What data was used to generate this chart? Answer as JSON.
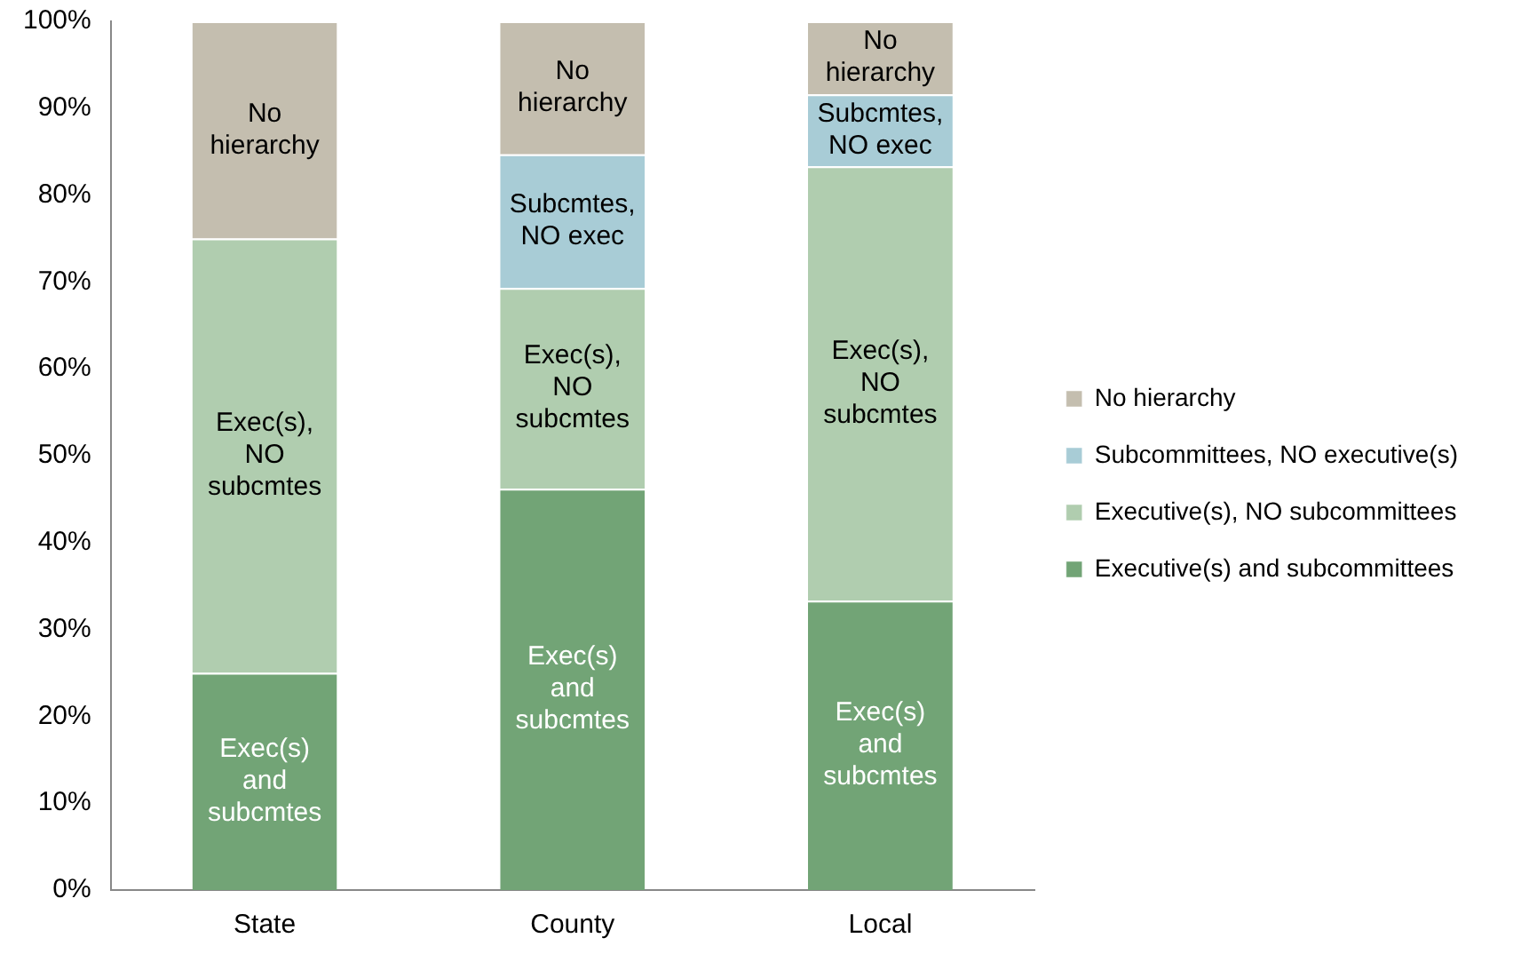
{
  "chart_data": {
    "type": "bar",
    "stacked": true,
    "categories": [
      "State",
      "County",
      "Local"
    ],
    "series": [
      {
        "name": "Executive(s) and subcommittees",
        "color": "#72a476",
        "values": [
          25,
          46.2,
          33.3
        ],
        "value_labels": [
          "Exec(s) and subcmtes",
          "Exec(s) and subcmtes",
          "Exec(s) and subcmtes"
        ]
      },
      {
        "name": "Executive(s), NO subcommittees",
        "color": "#b0cdaf",
        "values": [
          50,
          23.1,
          50
        ],
        "value_labels": [
          "Exec(s), NO subcmtes",
          "Exec(s), NO subcmtes",
          "Exec(s), NO subcmtes"
        ]
      },
      {
        "name": "Subcommittees, NO executive(s)",
        "color": "#a8ccd6",
        "values": [
          0,
          15.4,
          8.3
        ],
        "value_labels": [
          null,
          "Subcmtes, NO exec",
          "Subcmtes, NO exec"
        ]
      },
      {
        "name": "No hierarchy",
        "color": "#c4beaf",
        "values": [
          25,
          15.3,
          8.4
        ],
        "value_labels": [
          "No hierarchy",
          "No hierarchy",
          "No hierarchy"
        ]
      }
    ],
    "ylim": [
      0,
      100
    ],
    "yticks": [
      {
        "value": 0,
        "label": "0%"
      },
      {
        "value": 10,
        "label": "10%"
      },
      {
        "value": 20,
        "label": "20%"
      },
      {
        "value": 30,
        "label": "30%"
      },
      {
        "value": 40,
        "label": "40%"
      },
      {
        "value": 50,
        "label": "50%"
      },
      {
        "value": 60,
        "label": "60%"
      },
      {
        "value": 70,
        "label": "70%"
      },
      {
        "value": 80,
        "label": "80%"
      },
      {
        "value": 90,
        "label": "90%"
      },
      {
        "value": 100,
        "label": "100%"
      }
    ],
    "grid": false,
    "legend": "right"
  }
}
